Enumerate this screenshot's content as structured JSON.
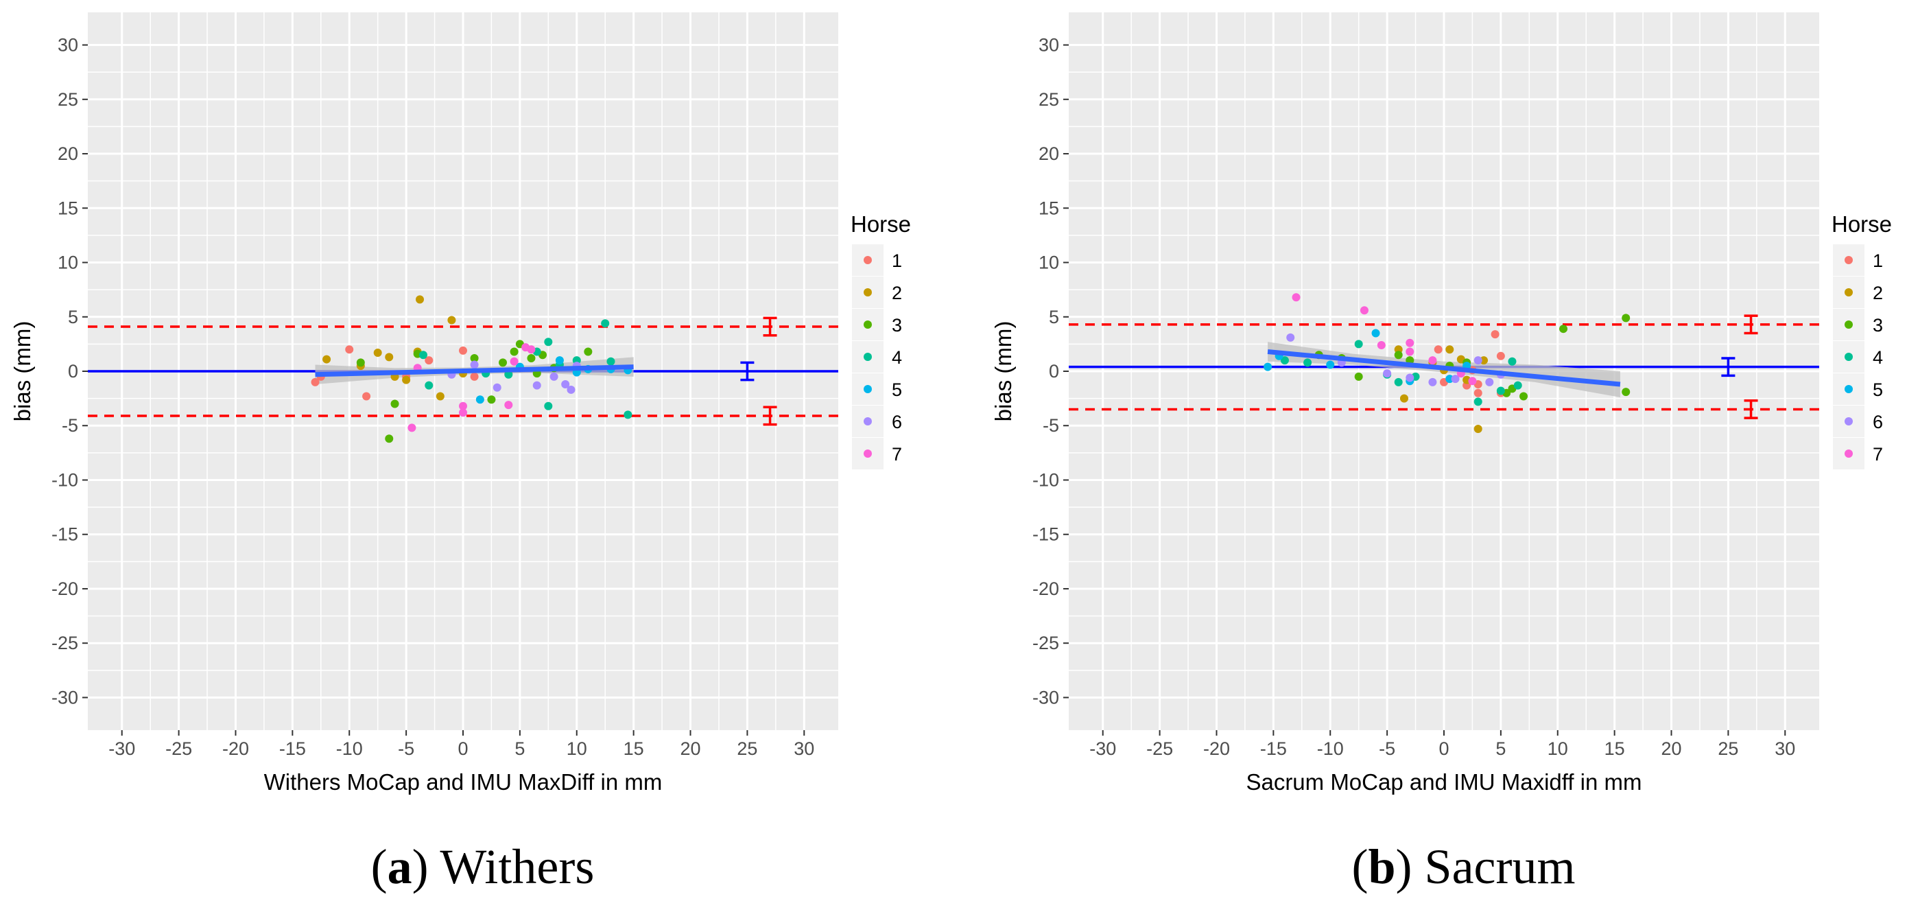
{
  "colors": {
    "panel_bg": "#EBEBEB",
    "grid": "#FFFFFF",
    "bias_line": "#0000FF",
    "loa_line": "#FF0000",
    "regression": "#3366FF",
    "ribbon": "#BFBFBF"
  },
  "legend": {
    "title": "Horse",
    "levels": [
      "1",
      "2",
      "3",
      "4",
      "5",
      "6",
      "7"
    ],
    "colors": [
      "#F8766D",
      "#C49A00",
      "#53B400",
      "#00C094",
      "#00B6EB",
      "#A58AFF",
      "#FB61D7"
    ]
  },
  "panels": [
    {
      "caption_letter": "a",
      "caption_text": "Withers",
      "chart_data": {
        "type": "scatter",
        "xlabel": "Withers MoCap and IMU MaxDiff in mm",
        "ylabel": "bias (mm)",
        "xlim": [
          -33,
          33
        ],
        "ylim": [
          -33,
          33
        ],
        "xticks": [
          -30,
          -25,
          -20,
          -15,
          -10,
          -5,
          0,
          5,
          10,
          15,
          20,
          25,
          30
        ],
        "yticks": [
          -30,
          -25,
          -20,
          -15,
          -10,
          -5,
          0,
          5,
          10,
          15,
          20,
          25,
          30
        ],
        "grid": true,
        "legend_position": "right",
        "bias": 0.0,
        "bias_ci": [
          -0.8,
          0.8
        ],
        "bias_errorbar_x": 25,
        "loa_upper": 4.1,
        "loa_upper_ci": [
          3.3,
          4.9
        ],
        "loa_lower": -4.1,
        "loa_lower_ci": [
          -4.9,
          -3.3
        ],
        "loa_errorbar_x": 27,
        "regression": {
          "x": [
            -13,
            15
          ],
          "y": [
            -0.3,
            0.4
          ]
        },
        "ribbon": {
          "x": [
            -13,
            -6,
            0,
            6,
            15
          ],
          "upper": [
            0.6,
            0.3,
            0.35,
            0.55,
            1.3
          ],
          "lower": [
            -1.2,
            -0.6,
            -0.3,
            -0.15,
            -0.5
          ]
        },
        "series": [
          {
            "name": "1",
            "points": [
              [
                -13,
                -1.0
              ],
              [
                -12.5,
                -0.5
              ],
              [
                -10,
                2.0
              ],
              [
                -8.5,
                -2.3
              ],
              [
                -5,
                -0.5
              ],
              [
                -3,
                1.0
              ],
              [
                0,
                1.9
              ],
              [
                1,
                -0.5
              ],
              [
                4,
                -0.2
              ]
            ]
          },
          {
            "name": "2",
            "points": [
              [
                -12,
                1.1
              ],
              [
                -9,
                0.5
              ],
              [
                -7.5,
                1.7
              ],
              [
                -6.5,
                1.3
              ],
              [
                -6,
                -0.5
              ],
              [
                -5,
                -0.8
              ],
              [
                -4,
                1.8
              ],
              [
                -3.8,
                6.6
              ],
              [
                -2,
                -2.3
              ],
              [
                -1,
                4.7
              ],
              [
                0,
                -0.2
              ]
            ]
          },
          {
            "name": "3",
            "points": [
              [
                -9,
                0.8
              ],
              [
                -6.5,
                -6.2
              ],
              [
                -6,
                -3.0
              ],
              [
                -4,
                1.6
              ],
              [
                1,
                1.2
              ],
              [
                2.5,
                -2.6
              ],
              [
                3.5,
                0.8
              ],
              [
                4.5,
                1.8
              ],
              [
                5,
                2.5
              ],
              [
                6,
                1.2
              ],
              [
                6.5,
                -0.2
              ],
              [
                7,
                1.5
              ],
              [
                8,
                0.3
              ],
              [
                11,
                1.8
              ]
            ]
          },
          {
            "name": "4",
            "points": [
              [
                -3.5,
                1.5
              ],
              [
                -3,
                -1.3
              ],
              [
                2,
                -0.2
              ],
              [
                4,
                -0.3
              ],
              [
                6.5,
                1.8
              ],
              [
                7.5,
                2.7
              ],
              [
                7.5,
                -3.2
              ],
              [
                8.5,
                0.6
              ],
              [
                10,
                1.0
              ],
              [
                12.5,
                4.4
              ],
              [
                13,
                0.9
              ],
              [
                14.5,
                -4.0
              ]
            ]
          },
          {
            "name": "5",
            "points": [
              [
                1.5,
                -2.6
              ],
              [
                5,
                0.4
              ],
              [
                8.5,
                1.0
              ],
              [
                10,
                -0.1
              ],
              [
                11,
                0.2
              ],
              [
                13,
                0.2
              ],
              [
                14.5,
                0.1
              ]
            ]
          },
          {
            "name": "6",
            "points": [
              [
                -1,
                -0.3
              ],
              [
                1,
                0.6
              ],
              [
                3,
                -1.5
              ],
              [
                6.5,
                -1.3
              ],
              [
                8,
                -0.5
              ],
              [
                9,
                -1.2
              ],
              [
                9.5,
                -1.7
              ],
              [
                10,
                0.5
              ]
            ]
          },
          {
            "name": "7",
            "points": [
              [
                -4.5,
                -5.2
              ],
              [
                -4,
                0.3
              ],
              [
                0,
                -3.2
              ],
              [
                0,
                -3.8
              ],
              [
                4,
                -3.1
              ],
              [
                4.5,
                0.9
              ],
              [
                5.5,
                2.2
              ],
              [
                6,
                2.0
              ]
            ]
          }
        ]
      }
    },
    {
      "caption_letter": "b",
      "caption_text": "Sacrum",
      "chart_data": {
        "type": "scatter",
        "xlabel": "Sacrum MoCap and IMU Maxidff in mm",
        "ylabel": "bias (mm)",
        "xlim": [
          -33,
          33
        ],
        "ylim": [
          -33,
          33
        ],
        "xticks": [
          -30,
          -25,
          -20,
          -15,
          -10,
          -5,
          0,
          5,
          10,
          15,
          20,
          25,
          30
        ],
        "yticks": [
          -30,
          -25,
          -20,
          -15,
          -10,
          -5,
          0,
          5,
          10,
          15,
          20,
          25,
          30
        ],
        "grid": true,
        "legend_position": "right",
        "bias": 0.4,
        "bias_ci": [
          -0.4,
          1.2
        ],
        "bias_errorbar_x": 25,
        "loa_upper": 4.3,
        "loa_upper_ci": [
          3.5,
          5.1
        ],
        "loa_lower": -3.5,
        "loa_lower_ci": [
          -4.3,
          -2.7
        ],
        "loa_errorbar_x": 27,
        "regression": {
          "x": [
            -15.5,
            15.5
          ],
          "y": [
            1.8,
            -1.2
          ]
        },
        "ribbon": {
          "x": [
            -15.5,
            -8,
            0,
            8,
            15.5
          ],
          "upper": [
            2.7,
            1.6,
            0.9,
            0.6,
            0.0
          ],
          "lower": [
            0.9,
            0.6,
            -0.1,
            -1.0,
            -2.4
          ]
        },
        "series": [
          {
            "name": "1",
            "points": [
              [
                -0.5,
                2.0
              ],
              [
                0,
                -1.0
              ],
              [
                2,
                -1.3
              ],
              [
                2.5,
                0.1
              ],
              [
                3,
                -2.0
              ],
              [
                3,
                -1.2
              ],
              [
                4.5,
                3.4
              ],
              [
                5,
                1.4
              ],
              [
                5,
                -2.0
              ]
            ]
          },
          {
            "name": "2",
            "points": [
              [
                -4,
                2.0
              ],
              [
                -3.5,
                -2.5
              ],
              [
                -1,
                0.8
              ],
              [
                0,
                0.1
              ],
              [
                0.5,
                2.0
              ],
              [
                1.5,
                1.1
              ],
              [
                2,
                -0.8
              ],
              [
                3,
                -5.3
              ],
              [
                3.5,
                1.0
              ]
            ]
          },
          {
            "name": "3",
            "points": [
              [
                -11,
                1.5
              ],
              [
                -9,
                1.2
              ],
              [
                -7.5,
                -0.5
              ],
              [
                -4,
                1.5
              ],
              [
                -3,
                1.0
              ],
              [
                0.5,
                0.5
              ],
              [
                2,
                0.8
              ],
              [
                5.5,
                -2.0
              ],
              [
                6,
                -1.6
              ],
              [
                7,
                -2.3
              ],
              [
                10.5,
                3.9
              ],
              [
                16,
                4.9
              ],
              [
                16,
                -1.9
              ]
            ]
          },
          {
            "name": "4",
            "points": [
              [
                -14,
                1.0
              ],
              [
                -12,
                0.8
              ],
              [
                -7.5,
                2.5
              ],
              [
                -5,
                -0.3
              ],
              [
                -4,
                -1.0
              ],
              [
                -2.5,
                -0.5
              ],
              [
                3,
                -2.8
              ],
              [
                5,
                -1.8
              ],
              [
                6,
                0.9
              ],
              [
                6.5,
                -1.3
              ]
            ]
          },
          {
            "name": "5",
            "points": [
              [
                -15.5,
                0.4
              ],
              [
                -14.5,
                1.4
              ],
              [
                -10,
                0.6
              ],
              [
                -6,
                3.5
              ],
              [
                -3,
                -0.9
              ],
              [
                0.5,
                -0.7
              ],
              [
                2,
                0.5
              ]
            ]
          },
          {
            "name": "6",
            "points": [
              [
                -13.5,
                3.1
              ],
              [
                -9,
                0.8
              ],
              [
                -5,
                -0.2
              ],
              [
                -3,
                -0.6
              ],
              [
                -1,
                -1.0
              ],
              [
                1,
                -0.7
              ],
              [
                3,
                1.0
              ],
              [
                4,
                -1.0
              ],
              [
                5,
                -0.3
              ]
            ]
          },
          {
            "name": "7",
            "points": [
              [
                -13,
                6.8
              ],
              [
                -7,
                5.6
              ],
              [
                -3,
                2.6
              ],
              [
                -3,
                1.8
              ],
              [
                -5.5,
                2.4
              ],
              [
                -1,
                1.0
              ],
              [
                1.5,
                -0.2
              ],
              [
                2.5,
                -0.9
              ]
            ]
          }
        ]
      }
    }
  ]
}
